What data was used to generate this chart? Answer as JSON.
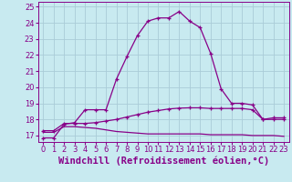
{
  "xlabel": "Windchill (Refroidissement éolien,°C)",
  "ylabel": "",
  "xlim": [
    -0.5,
    23.5
  ],
  "ylim": [
    16.6,
    25.3
  ],
  "yticks": [
    17,
    18,
    19,
    20,
    21,
    22,
    23,
    24,
    25
  ],
  "xticks": [
    0,
    1,
    2,
    3,
    4,
    5,
    6,
    7,
    8,
    9,
    10,
    11,
    12,
    13,
    14,
    15,
    16,
    17,
    18,
    19,
    20,
    21,
    22,
    23
  ],
  "bg_color": "#c8eaf0",
  "grid_color": "#aaccd8",
  "line_color": "#880088",
  "line1_x": [
    0,
    1,
    2,
    3,
    4,
    5,
    6,
    7,
    8,
    9,
    10,
    11,
    12,
    13,
    14,
    15,
    16,
    17,
    18,
    19,
    20,
    21,
    22,
    23
  ],
  "line1_y": [
    16.85,
    16.85,
    17.7,
    17.8,
    18.6,
    18.6,
    18.6,
    20.5,
    21.9,
    23.2,
    24.1,
    24.3,
    24.3,
    24.7,
    24.1,
    23.7,
    22.1,
    19.9,
    19.0,
    19.0,
    18.9,
    18.0,
    18.1,
    18.1
  ],
  "line2_x": [
    0,
    1,
    2,
    3,
    4,
    5,
    6,
    7,
    8,
    9,
    10,
    11,
    12,
    13,
    14,
    15,
    16,
    17,
    18,
    19,
    20,
    21,
    22,
    23
  ],
  "line2_y": [
    17.3,
    17.3,
    17.75,
    17.75,
    17.75,
    17.8,
    17.9,
    18.0,
    18.15,
    18.3,
    18.45,
    18.55,
    18.65,
    18.7,
    18.72,
    18.72,
    18.68,
    18.68,
    18.68,
    18.68,
    18.6,
    18.0,
    18.0,
    18.0
  ],
  "line3_x": [
    0,
    1,
    2,
    3,
    4,
    5,
    6,
    7,
    8,
    9,
    10,
    11,
    12,
    13,
    14,
    15,
    16,
    17,
    18,
    19,
    20,
    21,
    22,
    23
  ],
  "line3_y": [
    17.2,
    17.2,
    17.55,
    17.55,
    17.5,
    17.45,
    17.35,
    17.25,
    17.2,
    17.15,
    17.1,
    17.1,
    17.1,
    17.1,
    17.1,
    17.1,
    17.05,
    17.05,
    17.05,
    17.05,
    17.0,
    17.0,
    17.0,
    16.95
  ],
  "tick_fontsize": 6.0,
  "xlabel_fontsize": 7.5
}
